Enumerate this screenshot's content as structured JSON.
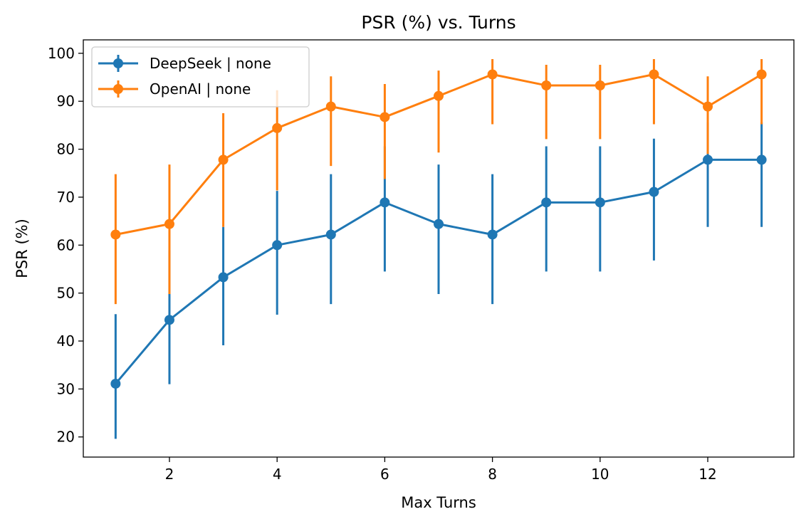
{
  "chart_data": {
    "type": "line",
    "title": "PSR (%) vs. Turns",
    "xlabel": "Max Turns",
    "ylabel": "PSR (%)",
    "xlim": [
      0.4,
      13.6
    ],
    "ylim": [
      15.8,
      102.8
    ],
    "xticks": [
      2,
      4,
      6,
      8,
      10,
      12
    ],
    "yticks": [
      20,
      30,
      40,
      50,
      60,
      70,
      80,
      90,
      100
    ],
    "grid": false,
    "legend_position": "upper-left",
    "x": [
      1,
      2,
      3,
      4,
      5,
      6,
      7,
      8,
      9,
      10,
      11,
      12,
      13
    ],
    "series": [
      {
        "name": "DeepSeek | none",
        "color": "#1f77b4",
        "values": [
          31.1,
          44.4,
          53.3,
          60.0,
          62.2,
          68.9,
          64.4,
          62.2,
          68.9,
          68.9,
          71.1,
          77.8,
          77.8
        ],
        "err_low": [
          19.6,
          31.0,
          39.1,
          45.5,
          47.7,
          54.5,
          49.8,
          47.7,
          54.5,
          54.5,
          56.8,
          63.8,
          63.8
        ],
        "err_high": [
          45.6,
          58.9,
          63.8,
          71.3,
          74.8,
          80.6,
          76.8,
          74.8,
          80.6,
          80.6,
          82.2,
          85.6,
          85.6
        ]
      },
      {
        "name": "OpenAI | none",
        "color": "#ff7f0e",
        "values": [
          62.2,
          64.4,
          77.8,
          84.4,
          88.9,
          86.7,
          91.1,
          95.6,
          93.3,
          93.3,
          95.6,
          88.9,
          95.6
        ],
        "err_low": [
          47.7,
          49.8,
          63.8,
          71.4,
          76.5,
          73.8,
          79.3,
          85.2,
          82.1,
          82.1,
          85.2,
          79.0,
          85.2
        ],
        "err_high": [
          74.8,
          76.8,
          87.5,
          92.3,
          95.2,
          93.6,
          96.4,
          98.8,
          97.6,
          97.6,
          98.8,
          95.2,
          98.8
        ]
      }
    ]
  }
}
